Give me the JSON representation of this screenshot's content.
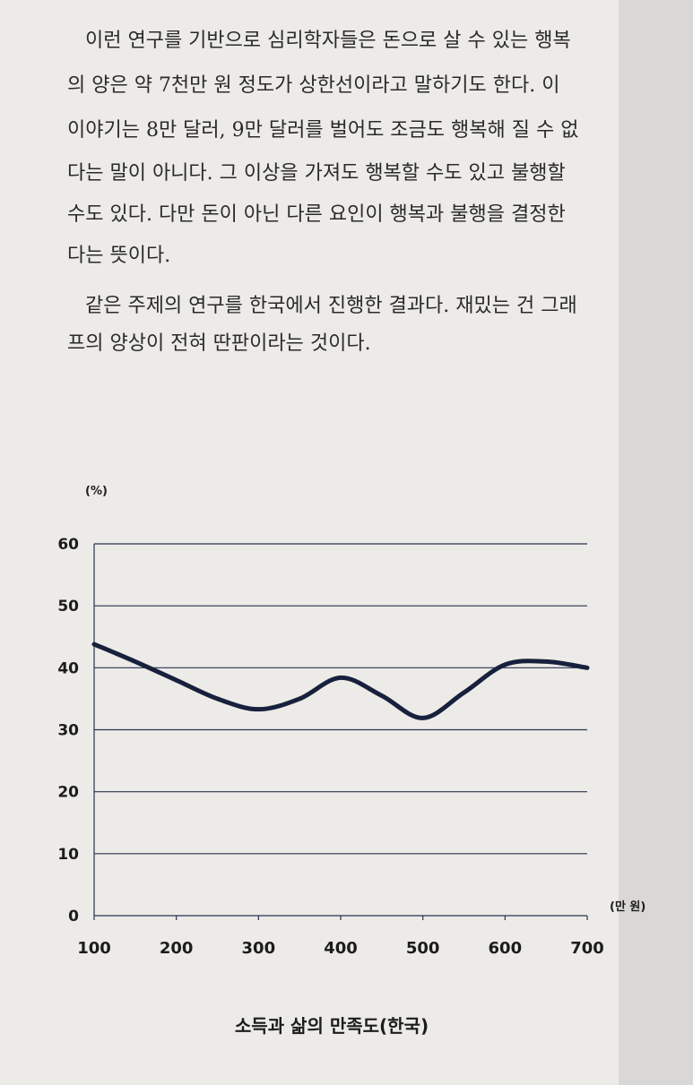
{
  "paragraphs": [
    [
      "이런 연구를 기반으로 심리학자들은 돈으로 살 수 있는 행복",
      "의 양은 약 7천만 원 정도가 상한선이라고 말하기도 한다. 이",
      "이야기는 8만 달러, 9만 달러를 벌어도 조금도 행복해 질 수 없",
      "다는 말이 아니다. 그 이상을 가져도 행복할 수도 있고 불행할",
      "수도 있다. 다만 돈이 아닌 다른 요인이 행복과 불행을 결정한",
      "다는 뜻이다."
    ],
    [
      "같은 주제의 연구를 한국에서 진행한 결과다. 재밌는 건 그래",
      "프의 양상이 전혀 딴판이라는 것이다."
    ]
  ],
  "chart_data": {
    "type": "line",
    "title": "소득과 삶의 만족도(한국)",
    "y_unit": "(%)",
    "x_unit": "(만 원)",
    "x": [
      100,
      150,
      200,
      250,
      300,
      350,
      400,
      450,
      500,
      550,
      600,
      650,
      700
    ],
    "values": [
      43.8,
      41,
      38,
      35,
      33.3,
      35,
      38.4,
      35.5,
      31.9,
      36,
      40.5,
      41,
      40
    ],
    "color": "#17213d",
    "xlim": [
      100,
      700
    ],
    "xticks": [
      100,
      200,
      300,
      400,
      500,
      600,
      700
    ],
    "ylim": [
      0,
      60
    ],
    "yticks": [
      0,
      10,
      20,
      30,
      40,
      50,
      60
    ],
    "grid": true
  }
}
